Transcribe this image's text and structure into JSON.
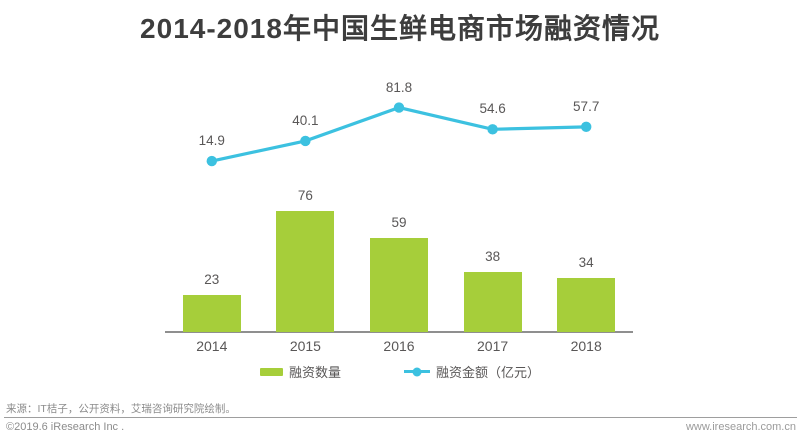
{
  "title": "2014-2018年中国生鲜电商市场融资情况",
  "chart_data": {
    "type": "bar+line",
    "title": "2014-2018年中国生鲜电商市场融资情况",
    "categories": [
      "2014",
      "2015",
      "2016",
      "2017",
      "2018"
    ],
    "series": [
      {
        "name": "融资数量",
        "type": "bar",
        "color": "#a6ce3a",
        "values": [
          23,
          76,
          59,
          38,
          34
        ]
      },
      {
        "name": "融资金额（亿元）",
        "type": "line",
        "color": "#3cc1e0",
        "values": [
          14.9,
          40.1,
          81.8,
          54.6,
          57.7
        ]
      }
    ],
    "xlabel": "",
    "ylabel": "",
    "grid": false,
    "data_labels": true,
    "legend_position": "bottom",
    "bar_ylim": [
      0,
      100
    ]
  },
  "footer": {
    "source": "来源：IT桔子，公开资料，艾瑞咨询研究院绘制。",
    "copyright": "©2019.6 iResearch Inc .",
    "website": "www.iresearch.com.cn"
  },
  "colors": {
    "bar": "#a6ce3a",
    "line": "#3cc1e0",
    "title_text": "#3d3d3d",
    "label_text": "#595757",
    "axis_line": "#8f8f8f",
    "footer_text": "#8c8c8c"
  }
}
